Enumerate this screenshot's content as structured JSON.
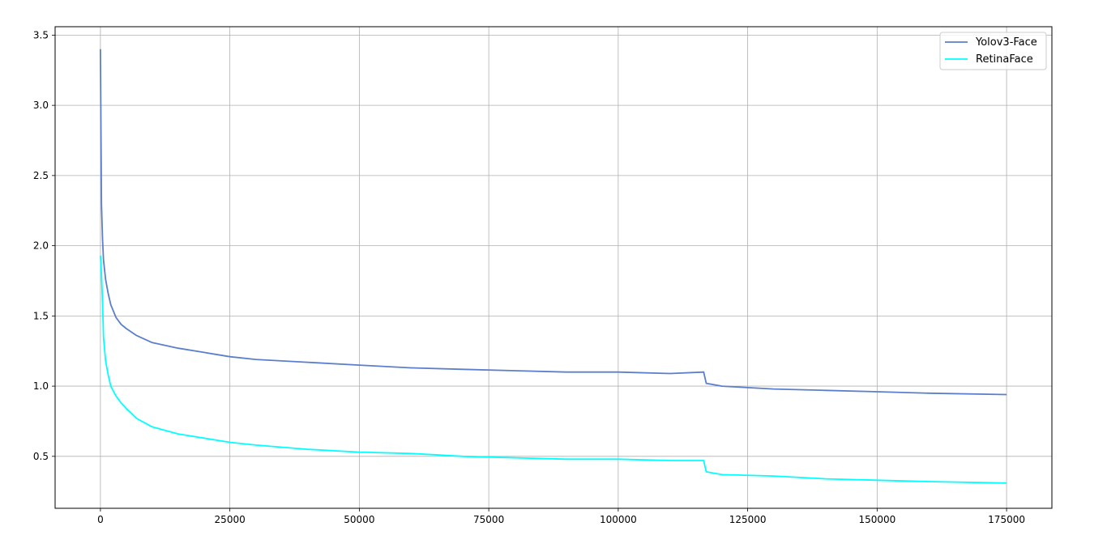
{
  "chart_data": {
    "type": "line",
    "title": "",
    "xlabel": "",
    "ylabel": "",
    "xlim": [
      -8750,
      183750
    ],
    "ylim": [
      0.13,
      3.56
    ],
    "grid": true,
    "legend_position": "top-right",
    "x_ticks": [
      0,
      25000,
      50000,
      75000,
      100000,
      125000,
      150000,
      175000
    ],
    "x_tick_labels": [
      "0",
      "25000",
      "50000",
      "75000",
      "100000",
      "125000",
      "150000",
      "175000"
    ],
    "y_ticks": [
      0.5,
      1.0,
      1.5,
      2.0,
      2.5,
      3.0,
      3.5
    ],
    "y_tick_labels": [
      "0.5",
      "1.0",
      "1.5",
      "2.0",
      "2.5",
      "3.0",
      "3.5"
    ],
    "series": [
      {
        "name": "Yolov3-Face",
        "color": "#5b7fcc",
        "x": [
          0,
          200,
          400,
          600,
          1000,
          1500,
          2000,
          3000,
          4000,
          5000,
          7000,
          10000,
          15000,
          20000,
          25000,
          30000,
          40000,
          50000,
          60000,
          70000,
          80000,
          90000,
          100000,
          110000,
          116500,
          117000,
          120000,
          130000,
          140000,
          150000,
          160000,
          175000
        ],
        "y": [
          3.4,
          2.3,
          2.05,
          1.9,
          1.76,
          1.66,
          1.58,
          1.49,
          1.44,
          1.41,
          1.36,
          1.31,
          1.27,
          1.24,
          1.21,
          1.19,
          1.17,
          1.15,
          1.13,
          1.12,
          1.11,
          1.1,
          1.1,
          1.09,
          1.1,
          1.02,
          1.0,
          0.98,
          0.97,
          0.96,
          0.95,
          0.94
        ]
      },
      {
        "name": "RetinaFace",
        "color": "#00ffff",
        "x": [
          0,
          200,
          400,
          600,
          1000,
          1500,
          2000,
          3000,
          4000,
          5000,
          7000,
          10000,
          15000,
          20000,
          25000,
          30000,
          40000,
          50000,
          60000,
          70000,
          80000,
          90000,
          100000,
          110000,
          116500,
          117000,
          120000,
          130000,
          140000,
          150000,
          160000,
          175000
        ],
        "y": [
          1.93,
          1.8,
          1.6,
          1.35,
          1.18,
          1.08,
          1.0,
          0.93,
          0.88,
          0.84,
          0.77,
          0.71,
          0.66,
          0.63,
          0.6,
          0.58,
          0.55,
          0.53,
          0.52,
          0.5,
          0.49,
          0.48,
          0.48,
          0.47,
          0.47,
          0.39,
          0.37,
          0.36,
          0.34,
          0.33,
          0.32,
          0.31
        ]
      }
    ]
  }
}
